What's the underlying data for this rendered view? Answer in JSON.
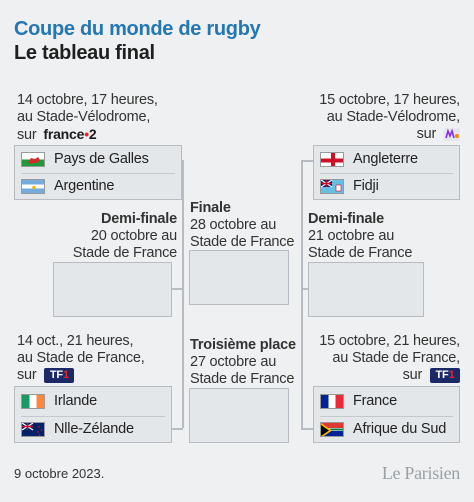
{
  "header": {
    "title": "Coupe du monde de rugby",
    "subtitle": "Le tableau final"
  },
  "qf_top_left": {
    "line1": "14 octobre, 17 heures,",
    "line2": "au Stade-Vélodrome,",
    "line3": "sur",
    "broadcaster": "france•2",
    "team1": "Pays de Galles",
    "team2": "Argentine"
  },
  "qf_top_right": {
    "line1": "15 octobre, 17 heures,",
    "line2": "au Stade-Vélodrome,",
    "line3": "sur",
    "broadcaster": "M6",
    "team1": "Angleterre",
    "team2": "Fidji"
  },
  "qf_bottom_left": {
    "line1": "14 oct., 21 heures,",
    "line2": "au Stade de France,",
    "line3": "sur",
    "broadcaster": "TF1",
    "team1": "Irlande",
    "team2": "Nlle-Zélande"
  },
  "qf_bottom_right": {
    "line1": "15 octobre, 21 heures,",
    "line2": "au Stade de France,",
    "line3": "sur",
    "broadcaster": "TF1",
    "team1": "France",
    "team2": "Afrique du Sud"
  },
  "semi_left": {
    "label": "Demi-finale",
    "line1": "20 octobre au",
    "line2": "Stade de France"
  },
  "semi_right": {
    "label": "Demi-finale",
    "line1": "21 octobre au",
    "line2": "Stade de France"
  },
  "final": {
    "label": "Finale",
    "line1": "28 octobre au",
    "line2": "Stade de France"
  },
  "third_place": {
    "label": "Troisième place",
    "line1": "27 octobre au",
    "line2": "Stade de France"
  },
  "footer": {
    "date": "9 octobre 2023.",
    "brand": "Le Parisien"
  },
  "colors": {
    "title": "#2577b3",
    "box_border": "#b6bcc2",
    "box_bg": "#e4e7ea",
    "background": "#eef0f1"
  }
}
